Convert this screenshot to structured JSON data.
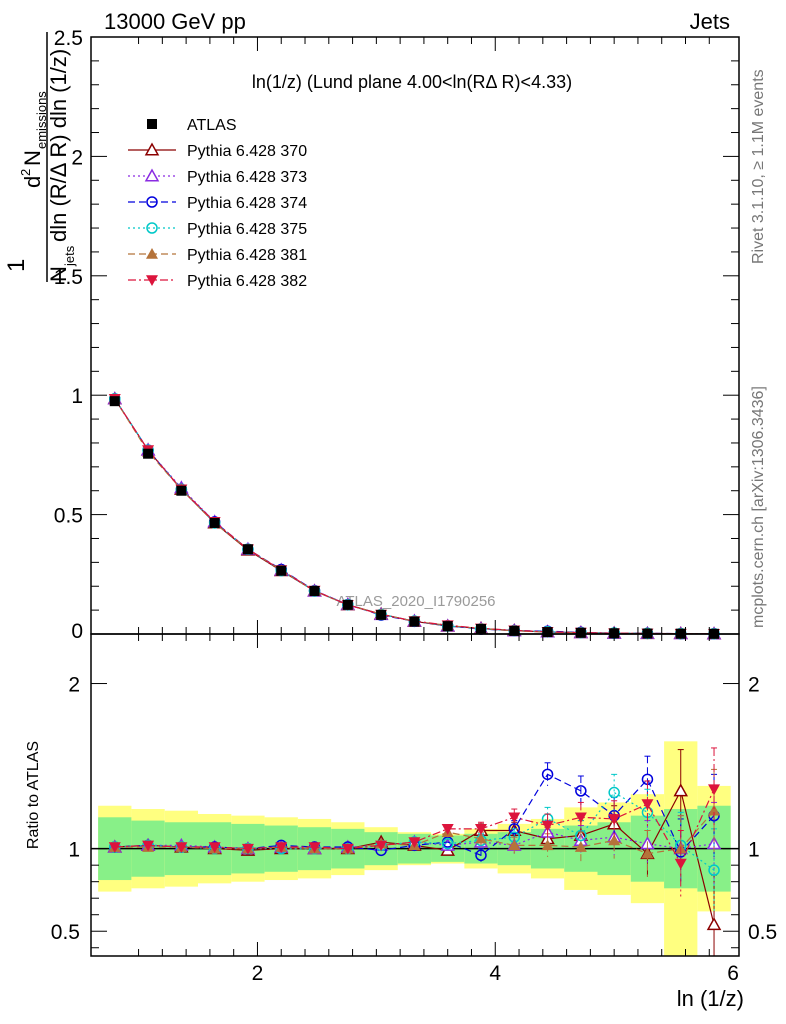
{
  "header": {
    "energy_label": "13000 GeV pp",
    "category_label": "Jets"
  },
  "top_panel": {
    "title": "ln(1/z) (Lund plane 4.00<ln(RΔ R)<4.33)",
    "watermark": "ATLAS_2020_I1790256",
    "ylabel_parts": {
      "one": "1",
      "n": "N",
      "jets": "jets",
      "den_rest": "dln (R/Δ R) dln (1/z)",
      "d2": "d",
      "two": "2",
      "num_n": "N",
      "emissions": "emissions"
    }
  },
  "bottom_panel": {
    "ylabel": "Ratio to ATLAS"
  },
  "xlabel": "ln (1/z)",
  "side_labels": {
    "rivet": "Rivet 3.1.10, ≥ 1.1M events",
    "mcplots": "mcplots.cern.ch [arXiv:1306.3436]"
  },
  "legend": [
    {
      "name": "ATLAS",
      "color": "#000000",
      "marker": "square-filled",
      "dash": ""
    },
    {
      "name": "Pythia 6.428 370",
      "color": "#8b0000",
      "marker": "triangle-up-open",
      "dash": ""
    },
    {
      "name": "Pythia 6.428 373",
      "color": "#8a2be2",
      "marker": "triangle-up-open",
      "dash": "2,3"
    },
    {
      "name": "Pythia 6.428 374",
      "color": "#0000dd",
      "marker": "circle-open",
      "dash": "7,4"
    },
    {
      "name": "Pythia 6.428 375",
      "color": "#00c8c8",
      "marker": "circle-open",
      "dash": "2,3"
    },
    {
      "name": "Pythia 6.428 381",
      "color": "#b5733a",
      "marker": "triangle-up-filled",
      "dash": "7,4"
    },
    {
      "name": "Pythia 6.428 382",
      "color": "#dc143c",
      "marker": "triangle-down-filled",
      "dash": "8,3,2,3"
    }
  ],
  "chart_data": {
    "type": "line",
    "x": [
      0.8,
      1.08,
      1.36,
      1.64,
      1.92,
      2.2,
      2.48,
      2.76,
      3.04,
      3.32,
      3.6,
      3.88,
      4.16,
      4.44,
      4.72,
      5.0,
      5.28,
      5.56,
      5.84
    ],
    "xlim": [
      0.6,
      6.05
    ],
    "xticks": [
      2,
      4,
      6
    ],
    "top": {
      "ylim": [
        0,
        2.5
      ],
      "yticks": [
        0,
        0.5,
        1,
        1.5,
        2,
        2.5
      ],
      "ytick_labels": [
        "0",
        "0.5",
        "1",
        "1.5",
        "2",
        "2.5"
      ],
      "atlas": [
        0.975,
        0.755,
        0.6,
        0.465,
        0.355,
        0.265,
        0.18,
        0.122,
        0.08,
        0.052,
        0.033,
        0.021,
        0.013,
        0.008,
        0.005,
        0.003,
        0.002,
        0.0013,
        0.0008
      ]
    },
    "bottom": {
      "ylim": [
        0.35,
        2.3
      ],
      "yticks": [
        0.5,
        1,
        2
      ],
      "ytick_labels": [
        "0.5",
        "1",
        "2"
      ],
      "band_inner": [
        0.19,
        0.17,
        0.16,
        0.16,
        0.15,
        0.14,
        0.13,
        0.12,
        0.1,
        0.09,
        0.08,
        0.09,
        0.1,
        0.12,
        0.14,
        0.16,
        0.2,
        0.24,
        0.26
      ],
      "band_outer": [
        0.26,
        0.24,
        0.23,
        0.21,
        0.2,
        0.19,
        0.18,
        0.16,
        0.13,
        0.1,
        0.09,
        0.12,
        0.15,
        0.18,
        0.25,
        0.28,
        0.33,
        0.65,
        0.38
      ],
      "series": [
        {
          "name": "Pythia 6.428 370",
          "values": [
            1.01,
            1.02,
            1.01,
            1.0,
            0.99,
            1.0,
            1.0,
            1.0,
            1.04,
            1.02,
            0.99,
            1.11,
            1.11,
            1.06,
            1.08,
            1.15,
            0.97,
            1.35,
            0.54
          ],
          "errors": [
            0.02,
            0.02,
            0.02,
            0.02,
            0.02,
            0.02,
            0.02,
            0.02,
            0.03,
            0.03,
            0.03,
            0.04,
            0.05,
            0.07,
            0.09,
            0.11,
            0.14,
            0.25,
            0.3
          ]
        },
        {
          "name": "Pythia 6.428 373",
          "values": [
            1.01,
            1.02,
            1.02,
            1.01,
            1.0,
            1.01,
            1.0,
            1.01,
            1.02,
            1.04,
            1.02,
            1.04,
            1.02,
            1.1,
            1.05,
            1.07,
            1.03,
            1.0,
            1.03
          ],
          "errors": [
            0.02,
            0.02,
            0.02,
            0.02,
            0.02,
            0.02,
            0.02,
            0.02,
            0.03,
            0.03,
            0.03,
            0.04,
            0.05,
            0.07,
            0.09,
            0.11,
            0.14,
            0.2,
            0.25
          ]
        },
        {
          "name": "Pythia 6.428 374",
          "values": [
            1.01,
            1.02,
            1.01,
            1.01,
            1.0,
            1.02,
            1.01,
            1.01,
            0.99,
            1.02,
            1.04,
            0.96,
            1.12,
            1.45,
            1.35,
            1.2,
            1.42,
            0.98,
            1.2
          ],
          "errors": [
            0.02,
            0.02,
            0.02,
            0.02,
            0.02,
            0.02,
            0.02,
            0.02,
            0.03,
            0.03,
            0.03,
            0.04,
            0.05,
            0.07,
            0.09,
            0.11,
            0.14,
            0.2,
            0.25
          ]
        },
        {
          "name": "Pythia 6.428 375",
          "values": [
            1.01,
            1.02,
            1.01,
            1.0,
            1.0,
            1.0,
            1.0,
            1.0,
            1.02,
            1.04,
            1.03,
            1.05,
            1.07,
            1.18,
            1.08,
            1.34,
            1.22,
            1.02,
            0.87
          ],
          "errors": [
            0.02,
            0.02,
            0.02,
            0.02,
            0.02,
            0.02,
            0.02,
            0.02,
            0.03,
            0.03,
            0.03,
            0.04,
            0.05,
            0.07,
            0.09,
            0.11,
            0.14,
            0.2,
            0.25
          ]
        },
        {
          "name": "Pythia 6.428 381",
          "values": [
            1.01,
            1.01,
            1.01,
            1.0,
            1.0,
            1.01,
            1.0,
            1.0,
            1.03,
            1.02,
            1.1,
            1.06,
            1.02,
            1.02,
            1.01,
            1.05,
            0.97,
            1.0,
            1.23
          ],
          "errors": [
            0.02,
            0.02,
            0.02,
            0.02,
            0.02,
            0.02,
            0.02,
            0.02,
            0.03,
            0.03,
            0.03,
            0.04,
            0.05,
            0.07,
            0.09,
            0.11,
            0.14,
            0.2,
            0.25
          ]
        },
        {
          "name": "Pythia 6.428 382",
          "values": [
            1.01,
            1.02,
            1.01,
            1.01,
            1.0,
            1.01,
            1.01,
            1.0,
            1.02,
            1.04,
            1.12,
            1.12,
            1.19,
            1.14,
            1.19,
            1.18,
            1.27,
            0.91,
            1.36
          ],
          "errors": [
            0.02,
            0.02,
            0.02,
            0.02,
            0.02,
            0.02,
            0.02,
            0.02,
            0.03,
            0.03,
            0.03,
            0.04,
            0.05,
            0.07,
            0.09,
            0.11,
            0.14,
            0.2,
            0.25
          ]
        }
      ]
    }
  }
}
